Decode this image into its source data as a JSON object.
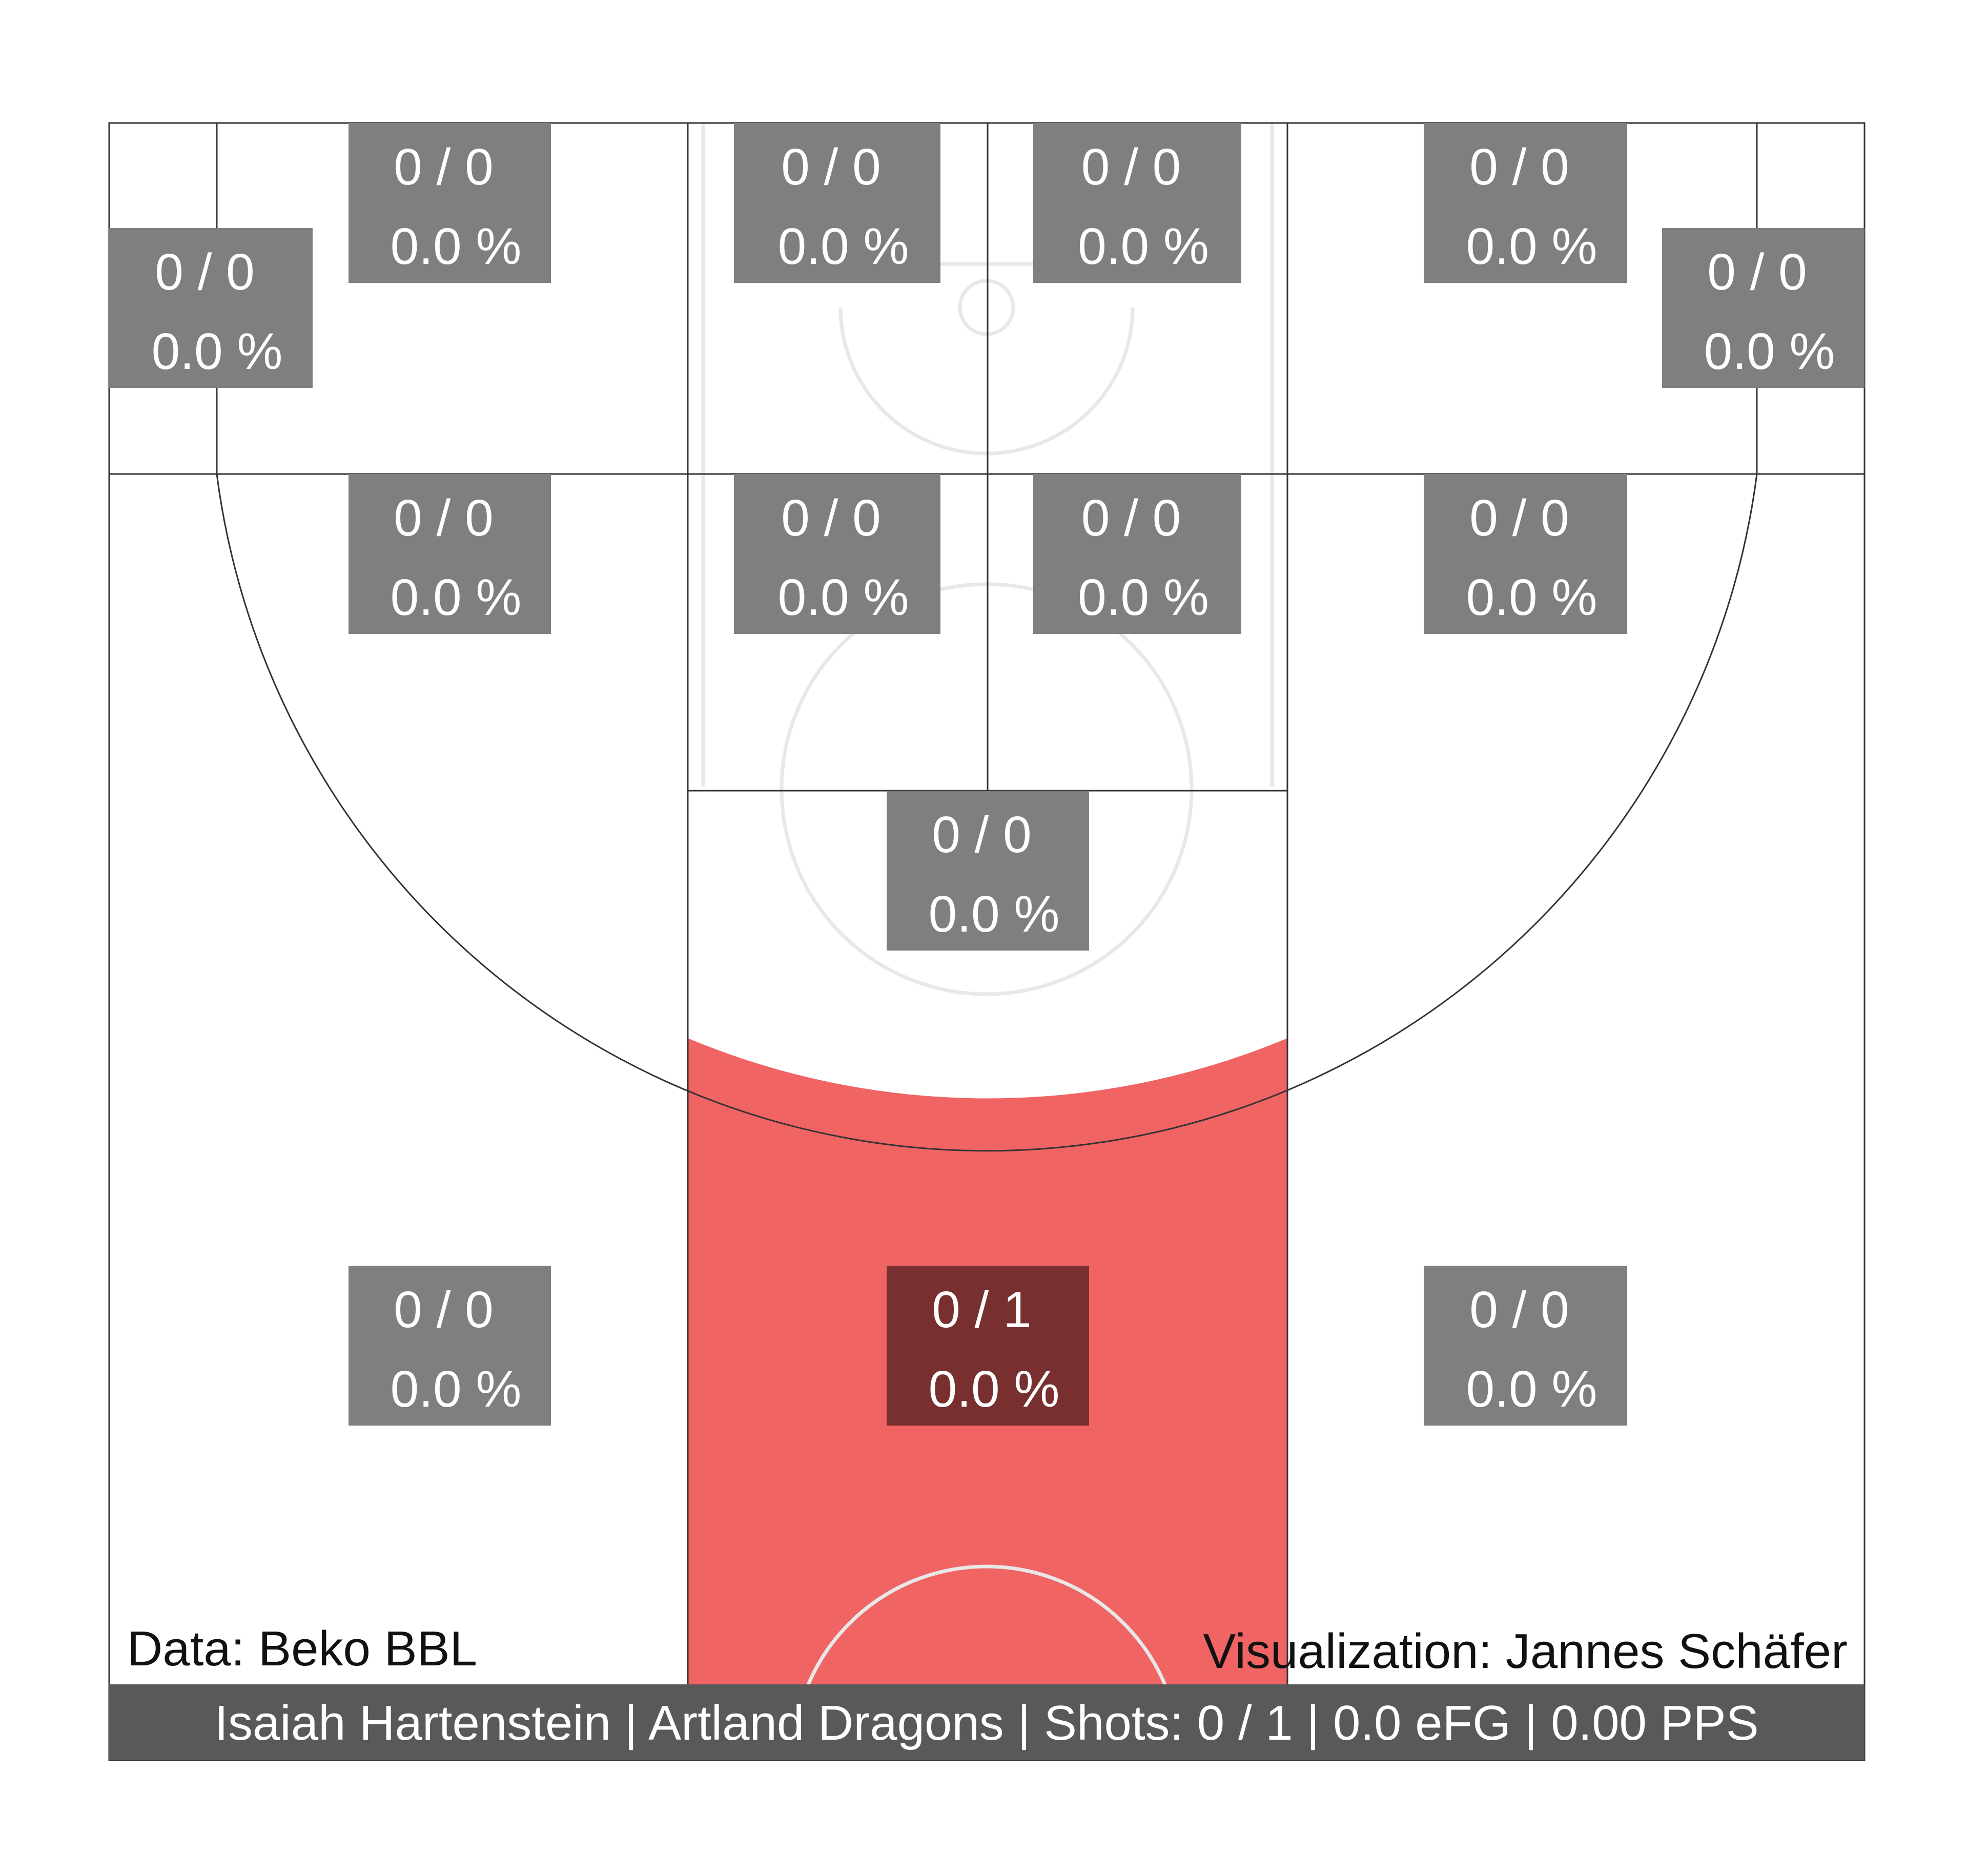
{
  "colors": {
    "zone_hot": "#f06464",
    "zone_empty": "#ffffff",
    "box_empty": "#7f7f7f",
    "box_shot": "#772f2f",
    "footer_bg": "#595959",
    "court_line": "#e8e8e8",
    "zone_line": "#333333"
  },
  "chart_data": {
    "type": "shot_chart",
    "zones": [
      {
        "id": "corner3-left",
        "made": 0,
        "attempts": 0,
        "pct": "0.0 %",
        "label": "0 / 0"
      },
      {
        "id": "top-left-wing-deep",
        "made": 0,
        "attempts": 0,
        "pct": "0.0 %",
        "label": "0 / 0"
      },
      {
        "id": "top-center-left-deep",
        "made": 0,
        "attempts": 0,
        "pct": "0.0 %",
        "label": "0 / 0"
      },
      {
        "id": "top-center-right-deep",
        "made": 0,
        "attempts": 0,
        "pct": "0.0 %",
        "label": "0 / 0"
      },
      {
        "id": "top-right-wing-deep",
        "made": 0,
        "attempts": 0,
        "pct": "0.0 %",
        "label": "0 / 0"
      },
      {
        "id": "corner3-right",
        "made": 0,
        "attempts": 0,
        "pct": "0.0 %",
        "label": "0 / 0"
      },
      {
        "id": "mid-left-wing",
        "made": 0,
        "attempts": 0,
        "pct": "0.0 %",
        "label": "0 / 0"
      },
      {
        "id": "mid-center-left",
        "made": 0,
        "attempts": 0,
        "pct": "0.0 %",
        "label": "0 / 0"
      },
      {
        "id": "mid-center-right",
        "made": 0,
        "attempts": 0,
        "pct": "0.0 %",
        "label": "0 / 0"
      },
      {
        "id": "mid-right-wing",
        "made": 0,
        "attempts": 0,
        "pct": "0.0 %",
        "label": "0 / 0"
      },
      {
        "id": "free-throw-area",
        "made": 0,
        "attempts": 0,
        "pct": "0.0 %",
        "label": "0 / 0"
      },
      {
        "id": "baseline-left",
        "made": 0,
        "attempts": 0,
        "pct": "0.0 %",
        "label": "0 / 0"
      },
      {
        "id": "paint",
        "made": 0,
        "attempts": 1,
        "pct": "0.0 %",
        "label": "0 / 1"
      },
      {
        "id": "baseline-right",
        "made": 0,
        "attempts": 0,
        "pct": "0.0 %",
        "label": "0 / 0"
      }
    ]
  },
  "credits": {
    "data_source": "Data: Beko BBL",
    "visualization": "Visualization: Jannes Schäfer"
  },
  "footer": {
    "text": "Isaiah Hartenstein | Artland Dragons | Shots: 0 / 1 | 0.0 eFG | 0.00 PPS"
  }
}
